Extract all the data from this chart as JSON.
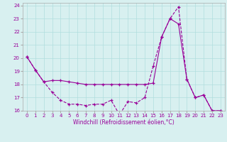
{
  "xlabel": "Windchill (Refroidissement éolien,°C)",
  "line1_x": [
    0,
    1,
    2,
    3,
    4,
    5,
    6,
    7,
    8,
    9,
    10,
    11,
    12,
    13,
    14,
    15,
    16,
    17,
    18,
    19,
    20,
    21,
    22,
    23
  ],
  "line1_y": [
    20.1,
    19.1,
    18.2,
    17.4,
    16.8,
    16.5,
    16.5,
    16.4,
    16.5,
    16.5,
    16.8,
    15.7,
    16.7,
    16.6,
    17.0,
    19.4,
    21.6,
    23.0,
    23.9,
    18.4,
    17.0,
    17.2,
    16.0,
    16.0
  ],
  "line2_x": [
    0,
    1,
    2,
    3,
    4,
    5,
    6,
    7,
    8,
    9,
    10,
    11,
    12,
    13,
    14,
    15,
    16,
    17,
    18,
    19,
    20,
    21,
    22,
    23
  ],
  "line2_y": [
    20.1,
    19.1,
    18.2,
    18.3,
    18.3,
    18.2,
    18.1,
    18.0,
    18.0,
    18.0,
    18.0,
    18.0,
    18.0,
    18.0,
    18.0,
    18.1,
    21.6,
    23.0,
    22.6,
    18.4,
    17.0,
    17.2,
    16.0,
    16.0
  ],
  "line1_style": "--",
  "line2_style": "-",
  "line_color": "#990099",
  "bg_color": "#d8f0f0",
  "grid_color": "#b0dede",
  "xlim": [
    -0.5,
    23.5
  ],
  "ylim": [
    16,
    24.2
  ],
  "yticks": [
    16,
    17,
    18,
    19,
    20,
    21,
    22,
    23,
    24
  ],
  "xticks": [
    0,
    1,
    2,
    3,
    4,
    5,
    6,
    7,
    8,
    9,
    10,
    11,
    12,
    13,
    14,
    15,
    16,
    17,
    18,
    19,
    20,
    21,
    22,
    23
  ],
  "tick_fontsize": 5.0,
  "xlabel_fontsize": 5.5
}
